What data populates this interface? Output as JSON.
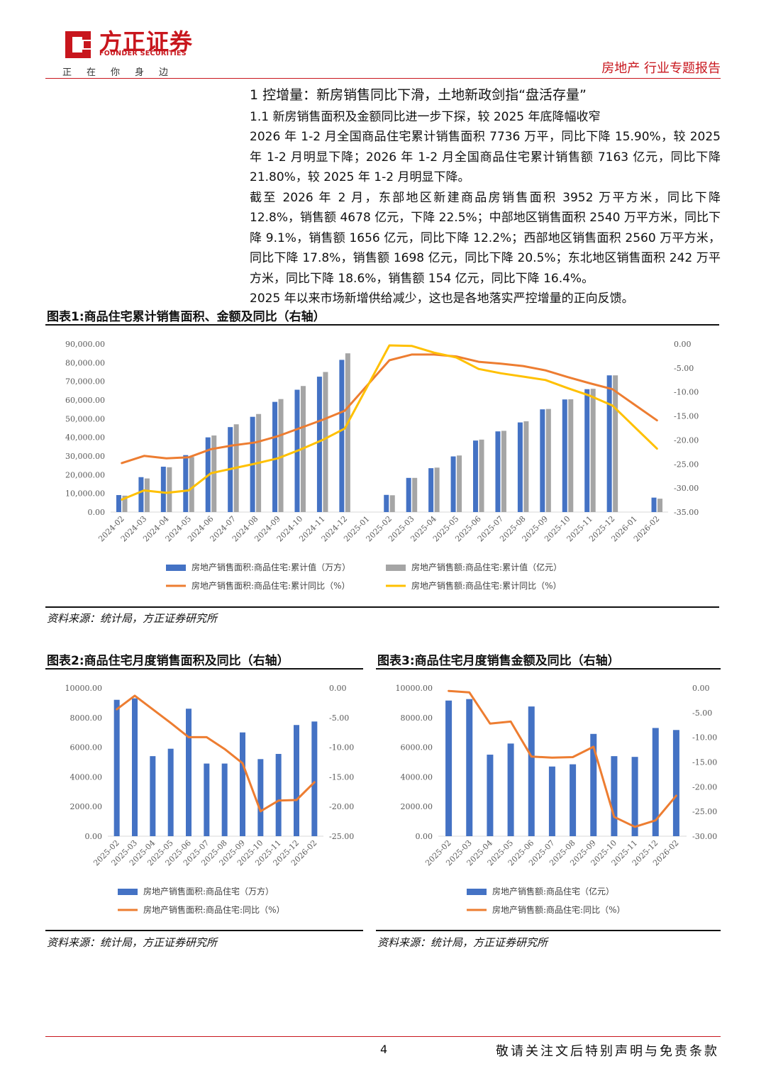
{
  "header": {
    "brand_cn": "方正证券",
    "brand_en": "FOUNDER SECURITIES",
    "slogan": "正在你身边",
    "report_type": "房地产 行业专题报告"
  },
  "text": {
    "section_title": "1 控增量：新房销售同比下滑，土地新政剑指“盘活存量”",
    "subsection_title": "1.1 新房销售面积及金额同比进一步下探，较 2025 年底降幅收窄",
    "para1": "2026 年 1-2 月全国商品住宅累计销售面积 7736 万平，同比下降 15.90%，较 2025 年 1-2 月明显下降；2026 年 1-2 月全国商品住宅累计销售额 7163 亿元，同比下降 21.80%，较 2025 年 1-2 月明显下降。",
    "para2": "截至 2026 年 2 月，东部地区新建商品房销售面积 3952 万平方米，同比下降 12.8%，销售额 4678 亿元，下降 22.5%；中部地区销售面积 2540 万平方米，同比下降 9.1%，销售额 1656 亿元，同比下降 12.2%；西部地区销售面积 2560 万平方米，同比下降 17.8%，销售额 1698 亿元，同比下降 20.5%；东北地区销售面积 242 万平方米，同比下降 18.6%，销售额 154 亿元，同比下降 16.4%。",
    "para3": "2025 年以来市场新增供给减少，这也是各地落实严控增量的正向反馈。"
  },
  "figures": {
    "fig1_title": "图表1:商品住宅累计销售面积、金额及同比（右轴）",
    "fig2_title": "图表2:商品住宅月度销售面积及同比（右轴）",
    "fig3_title": "图表3:商品住宅月度销售金额及同比（右轴）",
    "source": "资料来源：统计局，方正证券研究所"
  },
  "footer": {
    "page": "4",
    "disclaimer": "敬请关注文后特别声明与免责条款"
  },
  "colors": {
    "brand_red": "#c8161d",
    "bar_blue": "#4472c4",
    "bar_gray": "#a5a5a5",
    "line_orange": "#ed7d31",
    "line_yellow": "#ffc000"
  },
  "chart_data": [
    {
      "type": "bar",
      "title": "图表1:商品住宅累计销售面积、金额及同比（右轴）",
      "categories": [
        "2024-02",
        "2024-03",
        "2024-04",
        "2024-05",
        "2024-06",
        "2024-07",
        "2024-08",
        "2024-09",
        "2024-10",
        "2024-11",
        "2024-12",
        "2025-01",
        "2025-02",
        "2025-03",
        "2025-04",
        "2025-05",
        "2025-06",
        "2025-07",
        "2025-08",
        "2025-09",
        "2025-10",
        "2025-11",
        "2025-12",
        "2026-01",
        "2026-02"
      ],
      "y_left_ticks": [
        "90,000.00",
        "80,000.00",
        "70,000.00",
        "60,000.00",
        "50,000.00",
        "40,000.00",
        "30,000.00",
        "20,000.00",
        "10,000.00",
        "0.00"
      ],
      "y_right_ticks": [
        "0.00",
        "-5.00",
        "-10.00",
        "-15.00",
        "-20.00",
        "-25.00",
        "-30.00",
        "-35.00"
      ],
      "ylim_left": [
        0,
        90000
      ],
      "ylim_right": [
        -35,
        0
      ],
      "series": [
        {
          "name": "房地产销售面积:商品住宅:累计值（万方）",
          "kind": "bar",
          "axis": "left",
          "color": "#4472c4",
          "values": [
            9100,
            18700,
            24300,
            30500,
            40000,
            45500,
            51000,
            59000,
            65500,
            72500,
            81500,
            null,
            9200,
            18300,
            23500,
            29800,
            38300,
            43200,
            48000,
            55000,
            60300,
            65800,
            73200,
            null,
            7736
          ]
        },
        {
          "name": "房地产销售额:商品住宅:累计值（亿元）",
          "kind": "bar",
          "axis": "left",
          "color": "#a5a5a5",
          "values": [
            8800,
            18000,
            24000,
            29500,
            41000,
            47000,
            52500,
            60500,
            67500,
            75000,
            85000,
            null,
            9000,
            18300,
            23800,
            30300,
            38800,
            43500,
            48600,
            55200,
            60400,
            66000,
            73200,
            null,
            7163
          ]
        },
        {
          "name": "房地产销售面积:商品住宅:累计同比（%）",
          "kind": "line",
          "axis": "right",
          "color": "#ed7d31",
          "values": [
            -24.8,
            -23.3,
            -23.8,
            -23.6,
            -21.9,
            -21.1,
            -20.5,
            -19.2,
            -17.5,
            -15.8,
            -13.9,
            null,
            -3.4,
            -2.2,
            -2.2,
            -2.6,
            -3.7,
            -4.1,
            -4.6,
            -5.5,
            -6.9,
            -8.2,
            -9.4,
            null,
            -15.9
          ]
        },
        {
          "name": "房地产销售额:商品住宅:累计同比（%）",
          "kind": "line",
          "axis": "right",
          "color": "#ffc000",
          "values": [
            -32.4,
            -30.5,
            -31.0,
            -30.5,
            -26.9,
            -25.9,
            -24.9,
            -23.8,
            -22.0,
            -20.0,
            -17.6,
            null,
            -0.3,
            -0.4,
            -1.8,
            -2.8,
            -5.2,
            -6.1,
            -6.8,
            -7.5,
            -9.2,
            -10.8,
            -12.8,
            null,
            -21.8
          ]
        }
      ]
    },
    {
      "type": "bar",
      "title": "图表2:商品住宅月度销售面积及同比（右轴）",
      "categories": [
        "2025-02",
        "2025-03",
        "2025-04",
        "2025-05",
        "2025-06",
        "2025-07",
        "2025-08",
        "2025-09",
        "2025-10",
        "2025-11",
        "2025-12",
        "2026-02"
      ],
      "y_left_ticks": [
        "10000.00",
        "8000.00",
        "6000.00",
        "4000.00",
        "2000.00",
        "0.00"
      ],
      "y_right_ticks": [
        "0.00",
        "-5.00",
        "-10.00",
        "-15.00",
        "-20.00",
        "-25.00"
      ],
      "ylim_left": [
        0,
        10000
      ],
      "ylim_right": [
        -25,
        0
      ],
      "series": [
        {
          "name": "房地产销售面积:商品住宅（万方）",
          "kind": "bar",
          "axis": "left",
          "color": "#4472c4",
          "values": [
            9200,
            9300,
            5400,
            5900,
            8600,
            4900,
            4900,
            7000,
            5200,
            5550,
            7500,
            7736
          ]
        },
        {
          "name": "房地产销售面积:商品住宅:同比（%）",
          "kind": "line",
          "axis": "right",
          "color": "#ed7d31",
          "values": [
            -3.6,
            -1.3,
            -3.6,
            -5.9,
            -8.3,
            -8.3,
            -10.3,
            -12.7,
            -20.8,
            -19.0,
            -18.9,
            -15.9
          ]
        }
      ]
    },
    {
      "type": "bar",
      "title": "图表3:商品住宅月度销售金额及同比（右轴）",
      "categories": [
        "2025-02",
        "2025-03",
        "2025-04",
        "2025-05",
        "2025-06",
        "2025-07",
        "2025-08",
        "2025-09",
        "2025-10",
        "2025-11",
        "2025-12",
        "2026-02"
      ],
      "y_left_ticks": [
        "10000.00",
        "8000.00",
        "6000.00",
        "4000.00",
        "2000.00",
        "0.00"
      ],
      "y_right_ticks": [
        "0.00",
        "-5.00",
        "-10.00",
        "-15.00",
        "-20.00",
        "-25.00",
        "-30.00"
      ],
      "ylim_left": [
        0,
        10000
      ],
      "ylim_right": [
        -30,
        0
      ],
      "series": [
        {
          "name": "房地产销售额:商品住宅（亿元）",
          "kind": "bar",
          "axis": "left",
          "color": "#4472c4",
          "values": [
            9150,
            9250,
            5500,
            6250,
            8750,
            4700,
            4850,
            6900,
            5400,
            5350,
            7300,
            7163
          ]
        },
        {
          "name": "房地产销售额:商品住宅:同比（%）",
          "kind": "line",
          "axis": "right",
          "color": "#ed7d31",
          "values": [
            -0.6,
            -0.9,
            -7.2,
            -6.8,
            -13.9,
            -14.1,
            -14.0,
            -11.9,
            -26.1,
            -28.1,
            -26.8,
            -21.8
          ]
        }
      ]
    }
  ]
}
